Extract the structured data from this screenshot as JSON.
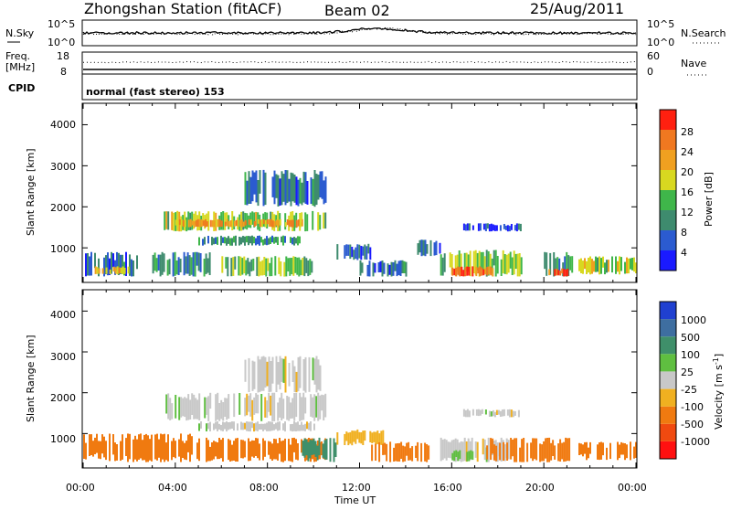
{
  "header": {
    "title": "Zhongshan Station (fitACF)",
    "beam": "Beam 02",
    "date": "25/Aug/2011"
  },
  "noise_panel": {
    "left_label": "N.Sky",
    "left_ticks": [
      "10^5",
      "10^0"
    ],
    "right_ticks": [
      "10^5",
      "10^0"
    ],
    "right_label": "N.Search"
  },
  "freq_panel": {
    "left_label_1": "Freq.",
    "left_label_2": "[MHz]",
    "left_ticks": [
      "18",
      "8"
    ],
    "right_ticks": [
      "60",
      "0"
    ],
    "right_label": "Nave"
  },
  "cpid_panel": {
    "label": "CPID",
    "text": "normal (fast stereo) 153"
  },
  "power_panel": {
    "ylabel": "Slant Range [km]",
    "yticks": [
      "1000",
      "2000",
      "3000",
      "4000"
    ],
    "colorbar_title": "Power [dB]",
    "colorbar_ticks": [
      "4",
      "8",
      "12",
      "16",
      "20",
      "24",
      "28"
    ],
    "colorbar_colors": [
      "#1a1aff",
      "#2b5bd0",
      "#3e8b6e",
      "#3fb64a",
      "#d8d820",
      "#f0a020",
      "#f07820",
      "#ff2010"
    ]
  },
  "velocity_panel": {
    "ylabel": "Slant Range [km]",
    "yticks": [
      "1000",
      "2000",
      "3000",
      "4000"
    ],
    "colorbar_title": "Velocity [m s",
    "colorbar_title_sup": "-1",
    "colorbar_title_end": "]",
    "colorbar_ticks": [
      "1000",
      "500",
      "100",
      "25",
      "-25",
      "-100",
      "-500",
      "-1000"
    ],
    "colorbar_colors": [
      "#2040d0",
      "#3e6ea0",
      "#3f8f6a",
      "#5fbf40",
      "#c8c8c8",
      "#f0b020",
      "#f07a10",
      "#f04a10",
      "#ff1010"
    ]
  },
  "xaxis": {
    "label": "Time UT",
    "ticks": [
      "00:00",
      "04:00",
      "08:00",
      "12:00",
      "16:00",
      "20:00",
      "00:00"
    ]
  },
  "chart_data": {
    "type": "heatmap",
    "x_unit": "hours UT",
    "xlim": [
      0,
      24
    ],
    "y_unit": "km",
    "ylim": [
      180,
      4500
    ],
    "power_db": [
      {
        "t_start": 0.0,
        "t_end": 2.5,
        "r_lo": 300,
        "r_hi": 900,
        "value": 8
      },
      {
        "t_start": 0.5,
        "t_end": 2.0,
        "r_lo": 350,
        "r_hi": 550,
        "value": 22
      },
      {
        "t_start": 3.0,
        "t_end": 5.5,
        "r_lo": 300,
        "r_hi": 900,
        "value": 10
      },
      {
        "t_start": 3.5,
        "t_end": 10.5,
        "r_lo": 1400,
        "r_hi": 1900,
        "value": 16
      },
      {
        "t_start": 4.0,
        "t_end": 9.5,
        "r_lo": 1500,
        "r_hi": 1700,
        "value": 22
      },
      {
        "t_start": 5.0,
        "t_end": 9.5,
        "r_lo": 1050,
        "r_hi": 1300,
        "value": 10
      },
      {
        "t_start": 7.0,
        "t_end": 10.5,
        "r_lo": 2000,
        "r_hi": 2900,
        "value": 8
      },
      {
        "t_start": 6.0,
        "t_end": 10.0,
        "r_lo": 300,
        "r_hi": 800,
        "value": 14
      },
      {
        "t_start": 11.0,
        "t_end": 12.5,
        "r_lo": 700,
        "r_hi": 1100,
        "value": 6
      },
      {
        "t_start": 12.0,
        "t_end": 14.0,
        "r_lo": 300,
        "r_hi": 700,
        "value": 8
      },
      {
        "t_start": 14.5,
        "t_end": 15.5,
        "r_lo": 800,
        "r_hi": 1200,
        "value": 8
      },
      {
        "t_start": 15.5,
        "t_end": 19.0,
        "r_lo": 300,
        "r_hi": 950,
        "value": 14
      },
      {
        "t_start": 16.0,
        "t_end": 17.8,
        "r_lo": 300,
        "r_hi": 550,
        "value": 28
      },
      {
        "t_start": 16.5,
        "t_end": 19.0,
        "r_lo": 1400,
        "r_hi": 1600,
        "value": 6
      },
      {
        "t_start": 20.0,
        "t_end": 21.2,
        "r_lo": 300,
        "r_hi": 900,
        "value": 12
      },
      {
        "t_start": 20.2,
        "t_end": 21.0,
        "r_lo": 300,
        "r_hi": 500,
        "value": 28
      },
      {
        "t_start": 21.5,
        "t_end": 24.0,
        "r_lo": 350,
        "r_hi": 800,
        "value": 16
      }
    ],
    "velocity_ms": [
      {
        "t_start": 0.0,
        "t_end": 5.0,
        "r_lo": 300,
        "r_hi": 1000,
        "value": -300
      },
      {
        "t_start": 3.5,
        "t_end": 10.5,
        "r_lo": 1300,
        "r_hi": 2000,
        "value": 0
      },
      {
        "t_start": 5.0,
        "t_end": 10.0,
        "r_lo": 1050,
        "r_hi": 1300,
        "value": 0
      },
      {
        "t_start": 7.0,
        "t_end": 10.5,
        "r_lo": 2000,
        "r_hi": 2900,
        "value": 0
      },
      {
        "t_start": 5.0,
        "t_end": 10.5,
        "r_lo": 300,
        "r_hi": 900,
        "value": -300
      },
      {
        "t_start": 9.5,
        "t_end": 11.0,
        "r_lo": 300,
        "r_hi": 900,
        "value": 300
      },
      {
        "t_start": 11.0,
        "t_end": 13.0,
        "r_lo": 700,
        "r_hi": 1100,
        "value": -50
      },
      {
        "t_start": 12.5,
        "t_end": 15.0,
        "r_lo": 300,
        "r_hi": 800,
        "value": -300
      },
      {
        "t_start": 15.5,
        "t_end": 18.5,
        "r_lo": 300,
        "r_hi": 900,
        "value": 0
      },
      {
        "t_start": 16.0,
        "t_end": 17.0,
        "r_lo": 300,
        "r_hi": 600,
        "value": 60
      },
      {
        "t_start": 16.5,
        "t_end": 19.0,
        "r_lo": 1400,
        "r_hi": 1600,
        "value": 0
      },
      {
        "t_start": 17.5,
        "t_end": 21.2,
        "r_lo": 300,
        "r_hi": 900,
        "value": -300
      },
      {
        "t_start": 21.5,
        "t_end": 24.0,
        "r_lo": 350,
        "r_hi": 800,
        "value": -300
      }
    ]
  }
}
